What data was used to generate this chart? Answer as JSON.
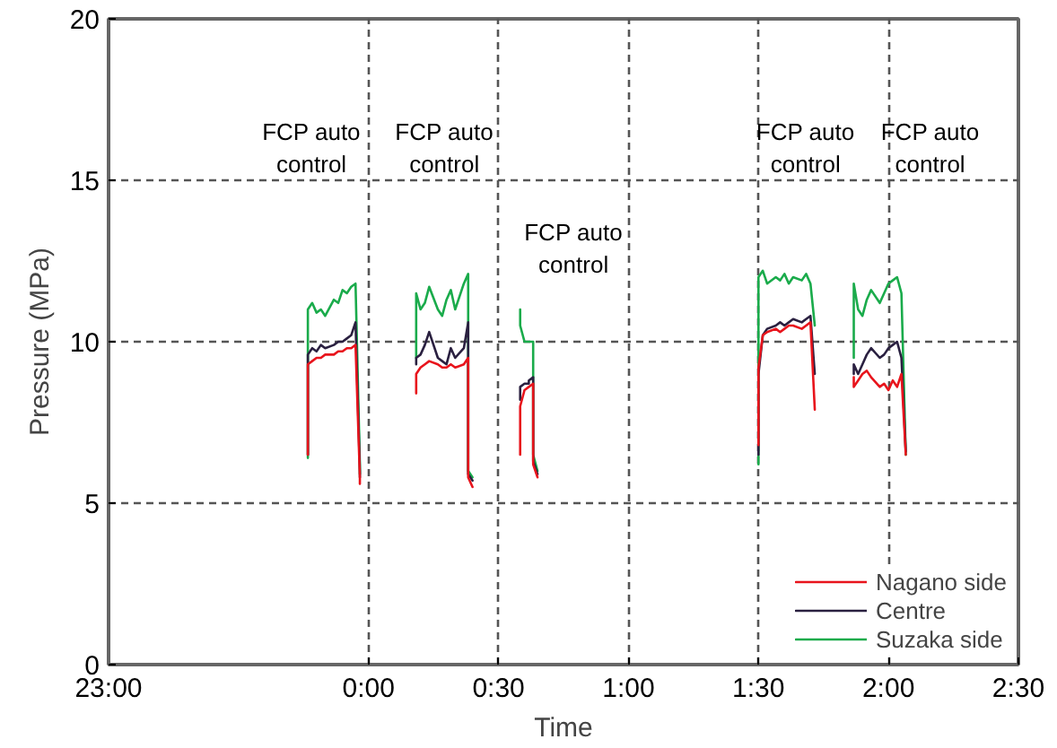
{
  "chart_data": {
    "type": "line",
    "xlabel": "Time",
    "ylabel": "Pressure (MPa)",
    "x": [
      "2000-01-01T23:46",
      "2000-01-01T23:46",
      "2000-01-01T23:47",
      "2000-01-01T23:48",
      "2000-01-01T23:49",
      "2000-01-01T23:50",
      "2000-01-01T23:52",
      "2000-01-01T23:53",
      "2000-01-01T23:54",
      "2000-01-01T23:55",
      "2000-01-01T23:56",
      "2000-01-01T23:57",
      "2000-01-01T23:58",
      "2000-01-01T23:58",
      "2000-01-02T00:00",
      "2000-01-02T00:11",
      "2000-01-02T00:11",
      "2000-01-02T00:12",
      "2000-01-02T00:13",
      "2000-01-02T00:14",
      "2000-01-02T00:16",
      "2000-01-02T00:17",
      "2000-01-02T00:18",
      "2000-01-02T00:19",
      "2000-01-02T00:20",
      "2000-01-02T00:22",
      "2000-01-02T00:23",
      "2000-01-02T00:23",
      "2000-01-02T00:24",
      "2000-01-02T00:27",
      "2000-01-02T00:35",
      "2000-01-02T00:35",
      "2000-01-02T00:36",
      "2000-01-02T00:37",
      "2000-01-02T00:37",
      "2000-01-02T00:38",
      "2000-01-02T00:38",
      "2000-01-02T00:39",
      "2000-01-02T01:00",
      "2000-01-02T01:30",
      "2000-01-02T01:30",
      "2000-01-02T01:31",
      "2000-01-02T01:32",
      "2000-01-02T01:34",
      "2000-01-02T01:35",
      "2000-01-02T01:36",
      "2000-01-02T01:37",
      "2000-01-02T01:38",
      "2000-01-02T01:40",
      "2000-01-02T01:41",
      "2000-01-02T01:42",
      "2000-01-02T01:43",
      "2000-01-02T01:47",
      "2000-01-02T01:52",
      "2000-01-02T01:52",
      "2000-01-02T01:53",
      "2000-01-02T01:54",
      "2000-01-02T01:55",
      "2000-01-02T01:56",
      "2000-01-02T01:58",
      "2000-01-02T01:59",
      "2000-01-02T02:00",
      "2000-01-02T02:01",
      "2000-01-02T02:02",
      "2000-01-02T02:03",
      "2000-01-02T02:04"
    ],
    "series": [
      {
        "name": "Nagano side",
        "color": "#e8141c",
        "values": [
          6.5,
          9.3,
          9.4,
          9.5,
          9.5,
          9.6,
          9.6,
          9.7,
          9.7,
          9.8,
          9.8,
          9.9,
          5.8,
          5.6,
          null,
          8.4,
          9.0,
          9.2,
          9.3,
          9.4,
          9.3,
          9.2,
          9.2,
          9.3,
          9.2,
          9.3,
          9.5,
          5.8,
          5.5,
          null,
          6.5,
          8.0,
          8.5,
          8.6,
          8.6,
          8.7,
          6.2,
          5.8,
          null,
          6.8,
          9.2,
          10.2,
          10.3,
          10.4,
          10.3,
          10.4,
          10.5,
          10.5,
          10.4,
          10.5,
          10.6,
          7.9,
          null,
          8.9,
          8.6,
          8.8,
          9.0,
          9.1,
          8.9,
          8.6,
          8.7,
          8.5,
          8.8,
          8.6,
          9.0,
          6.5
        ]
      },
      {
        "name": "Centre",
        "color": "#2a2040",
        "values": [
          6.5,
          9.6,
          9.8,
          9.7,
          9.9,
          9.8,
          9.9,
          10.0,
          10.0,
          10.1,
          10.2,
          10.6,
          6.0,
          5.8,
          null,
          9.3,
          9.5,
          9.6,
          9.9,
          10.3,
          9.5,
          9.4,
          9.3,
          9.8,
          9.5,
          9.8,
          10.6,
          5.9,
          5.7,
          null,
          8.2,
          8.6,
          8.7,
          8.7,
          8.8,
          8.9,
          6.3,
          5.9,
          null,
          6.5,
          9.0,
          10.2,
          10.4,
          10.5,
          10.6,
          10.5,
          10.6,
          10.7,
          10.6,
          10.7,
          10.8,
          9.0,
          null,
          9.0,
          9.3,
          9.0,
          9.3,
          9.6,
          9.8,
          9.5,
          9.6,
          9.8,
          9.9,
          10.0,
          9.5,
          6.6
        ]
      },
      {
        "name": "Suzaka side",
        "color": "#1aab4b",
        "values": [
          6.4,
          11.0,
          11.2,
          10.9,
          11.0,
          10.8,
          11.3,
          11.2,
          11.6,
          11.5,
          11.7,
          11.8,
          6.2,
          5.9,
          null,
          9.5,
          11.5,
          11.0,
          11.2,
          11.7,
          11.0,
          10.8,
          11.3,
          11.6,
          11.0,
          11.8,
          12.1,
          6.0,
          5.8,
          null,
          11.0,
          10.5,
          10.0,
          10.0,
          10.0,
          10.0,
          6.5,
          6.0,
          null,
          6.2,
          12.0,
          12.2,
          11.8,
          12.0,
          11.9,
          12.1,
          11.8,
          12.0,
          11.9,
          12.1,
          11.8,
          10.5,
          null,
          9.5,
          11.8,
          11.0,
          10.8,
          11.3,
          11.6,
          11.2,
          11.5,
          11.8,
          11.9,
          12.0,
          11.5,
          6.5
        ]
      }
    ],
    "xlim": [
      "2000-01-01T23:00",
      "2000-01-02T02:30"
    ],
    "ylim": [
      0,
      20
    ],
    "xticks": [
      {
        "value": "2000-01-01T23:00",
        "label": "23:00"
      },
      {
        "value": "2000-01-02T00:00",
        "label": "0:00"
      },
      {
        "value": "2000-01-02T00:30",
        "label": "0:30"
      },
      {
        "value": "2000-01-02T01:00",
        "label": "1:00"
      },
      {
        "value": "2000-01-02T01:30",
        "label": "1:30"
      },
      {
        "value": "2000-01-02T02:00",
        "label": "2:00"
      },
      {
        "value": "2000-01-02T02:30",
        "label": "2:30"
      }
    ],
    "yticks": [
      0,
      5,
      10,
      15,
      20
    ],
    "annotations": [
      "FCP auto\ncontrol",
      "FCP auto\ncontrol",
      "FCP auto\ncontrol",
      "FCP auto\ncontrol",
      "FCP auto\ncontrol"
    ],
    "grid": true,
    "legend": "bottom right",
    "line_style": "solid",
    "marker": "none"
  }
}
